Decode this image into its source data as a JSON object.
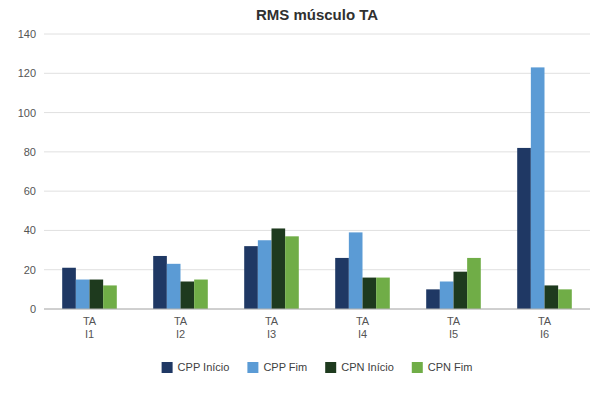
{
  "chart_data": {
    "type": "bar",
    "title": "RMS músculo TA",
    "categories": [
      "TA\nI1",
      "TA\nI2",
      "TA\nI3",
      "TA\nI4",
      "TA\nI5",
      "TA\nI6"
    ],
    "series": [
      {
        "name": "CPP Início",
        "color": "#1f3864",
        "values": [
          21,
          27,
          32,
          26,
          10,
          82
        ]
      },
      {
        "name": "CPP Fim",
        "color": "#5b9bd5",
        "values": [
          15,
          23,
          35,
          39,
          14,
          123
        ]
      },
      {
        "name": "CPN Início",
        "color": "#1e3a1e",
        "values": [
          15,
          14,
          41,
          16,
          19,
          12
        ]
      },
      {
        "name": "CPN Fim",
        "color": "#70ad47",
        "values": [
          12,
          15,
          37,
          16,
          26,
          10
        ]
      }
    ],
    "ylim": [
      0,
      140
    ],
    "yticks": [
      0,
      20,
      40,
      60,
      80,
      100,
      120,
      140
    ],
    "grid": true,
    "legend": "bottom"
  }
}
